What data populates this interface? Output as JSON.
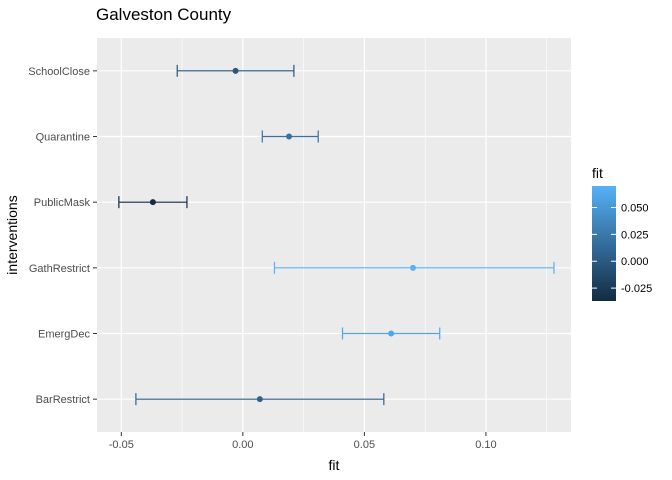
{
  "chart_data": {
    "type": "scatter",
    "subtype": "point-errorbar",
    "orientation": "horizontal",
    "title": "Galveston County",
    "xlabel": "fit",
    "ylabel": "interventions",
    "xlim": [
      -0.06,
      0.135
    ],
    "x_ticks": [
      {
        "value": -0.05,
        "label": "-0.05"
      },
      {
        "value": 0,
        "label": "0.00"
      },
      {
        "value": 0.05,
        "label": "0.05"
      },
      {
        "value": 0.1,
        "label": "0.10"
      }
    ],
    "categories": [
      "SchoolClose",
      "Quarantine",
      "PublicMask",
      "GathRestrict",
      "EmergDec",
      "BarRestrict"
    ],
    "points": [
      {
        "category": "SchoolClose",
        "fit": -0.003,
        "lower": -0.027,
        "upper": 0.021
      },
      {
        "category": "Quarantine",
        "fit": 0.019,
        "lower": 0.008,
        "upper": 0.031
      },
      {
        "category": "PublicMask",
        "fit": -0.037,
        "lower": -0.051,
        "upper": -0.023
      },
      {
        "category": "GathRestrict",
        "fit": 0.07,
        "lower": 0.013,
        "upper": 0.128
      },
      {
        "category": "EmergDec",
        "fit": 0.061,
        "lower": 0.041,
        "upper": 0.081
      },
      {
        "category": "BarRestrict",
        "fit": 0.007,
        "lower": -0.044,
        "upper": 0.058
      }
    ],
    "grid": true,
    "legend": {
      "title": "fit",
      "position": "right",
      "type": "colorbar",
      "range": [
        -0.037,
        0.07
      ],
      "ticks": [
        {
          "value": 0.05,
          "label": "0.050"
        },
        {
          "value": 0.025,
          "label": "0.025"
        },
        {
          "value": 0,
          "label": "0.000"
        },
        {
          "value": -0.025,
          "label": "-0.025"
        }
      ]
    },
    "colors": {
      "low": "#132b43",
      "high": "#56b1f7",
      "panel": "#ebebeb",
      "grid": "#ffffff"
    }
  }
}
